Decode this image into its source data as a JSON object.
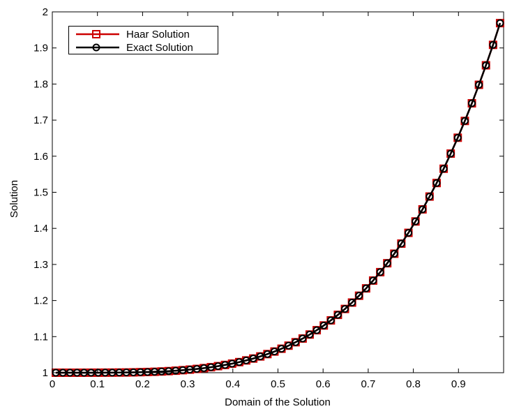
{
  "chart_data": {
    "type": "line",
    "title": "",
    "xlabel": "Domain of the Solution",
    "ylabel": "Solution",
    "xlim": [
      0,
      1
    ],
    "ylim": [
      1,
      2
    ],
    "grid": false,
    "legend_position": "top-left",
    "x_ticks": [
      "0",
      "0.1",
      "0.2",
      "0.3",
      "0.4",
      "0.5",
      "0.6",
      "0.7",
      "0.8",
      "0.9"
    ],
    "y_ticks": [
      "1",
      "1.1",
      "1.2",
      "1.3",
      "1.4",
      "1.5",
      "1.6",
      "1.7",
      "1.8",
      "1.9",
      "2"
    ],
    "x_tick_values": [
      0,
      0.1,
      0.2,
      0.3,
      0.4,
      0.5,
      0.6,
      0.7,
      0.8,
      0.9
    ],
    "y_tick_values": [
      1,
      1.1,
      1.2,
      1.3,
      1.4,
      1.5,
      1.6,
      1.7,
      1.8,
      1.9,
      2
    ],
    "x": [
      0.0078,
      0.0234,
      0.0391,
      0.0547,
      0.0703,
      0.0859,
      0.1016,
      0.1172,
      0.1328,
      0.1484,
      0.1641,
      0.1797,
      0.1953,
      0.2109,
      0.2266,
      0.2422,
      0.2578,
      0.2734,
      0.2891,
      0.3047,
      0.3203,
      0.3359,
      0.3516,
      0.3672,
      0.3828,
      0.3984,
      0.4141,
      0.4297,
      0.4453,
      0.4609,
      0.4766,
      0.4922,
      0.5078,
      0.5234,
      0.5391,
      0.5547,
      0.5703,
      0.5859,
      0.6016,
      0.6172,
      0.6328,
      0.6484,
      0.6641,
      0.6797,
      0.6953,
      0.7109,
      0.7266,
      0.7422,
      0.7578,
      0.7734,
      0.7891,
      0.8047,
      0.8203,
      0.8359,
      0.8516,
      0.8672,
      0.8828,
      0.8984,
      0.9141,
      0.9297,
      0.9453,
      0.9609,
      0.9766,
      0.9922
    ],
    "series": [
      {
        "name": "Haar Solution",
        "color": "#cc0000",
        "marker": "square",
        "values": [
          1.0,
          1.0,
          1.0,
          1.0,
          1.0,
          1.0001,
          1.0001,
          1.0002,
          1.0003,
          1.0005,
          1.0007,
          1.001,
          1.0015,
          1.002,
          1.0026,
          1.0034,
          1.0044,
          1.0056,
          1.007,
          1.0086,
          1.0105,
          1.0127,
          1.0153,
          1.0182,
          1.0215,
          1.0252,
          1.0294,
          1.0341,
          1.0393,
          1.0451,
          1.0516,
          1.0587,
          1.0665,
          1.075,
          1.0845,
          1.0947,
          1.1058,
          1.1178,
          1.1309,
          1.145,
          1.1603,
          1.1767,
          1.1944,
          1.2134,
          1.2337,
          1.2554,
          1.2787,
          1.3034,
          1.3298,
          1.3578,
          1.3876,
          1.4192,
          1.4527,
          1.4882,
          1.5257,
          1.5653,
          1.6072,
          1.6512,
          1.6977,
          1.7466,
          1.7979,
          1.8519,
          1.9085,
          1.9688
        ]
      },
      {
        "name": "Exact Solution",
        "color": "#000000",
        "marker": "circle",
        "values": [
          1.0,
          1.0,
          1.0,
          1.0,
          1.0,
          1.0001,
          1.0001,
          1.0002,
          1.0003,
          1.0005,
          1.0007,
          1.001,
          1.0015,
          1.002,
          1.0026,
          1.0034,
          1.0044,
          1.0056,
          1.007,
          1.0086,
          1.0105,
          1.0127,
          1.0153,
          1.0182,
          1.0215,
          1.0252,
          1.0294,
          1.0341,
          1.0393,
          1.0451,
          1.0516,
          1.0587,
          1.0665,
          1.075,
          1.0845,
          1.0947,
          1.1058,
          1.1178,
          1.1309,
          1.145,
          1.1603,
          1.1767,
          1.1944,
          1.2134,
          1.2337,
          1.2554,
          1.2787,
          1.3034,
          1.3298,
          1.3578,
          1.3876,
          1.4192,
          1.4527,
          1.4882,
          1.5257,
          1.5653,
          1.6072,
          1.6512,
          1.6977,
          1.7466,
          1.7979,
          1.8519,
          1.9085,
          1.9688
        ]
      }
    ]
  }
}
